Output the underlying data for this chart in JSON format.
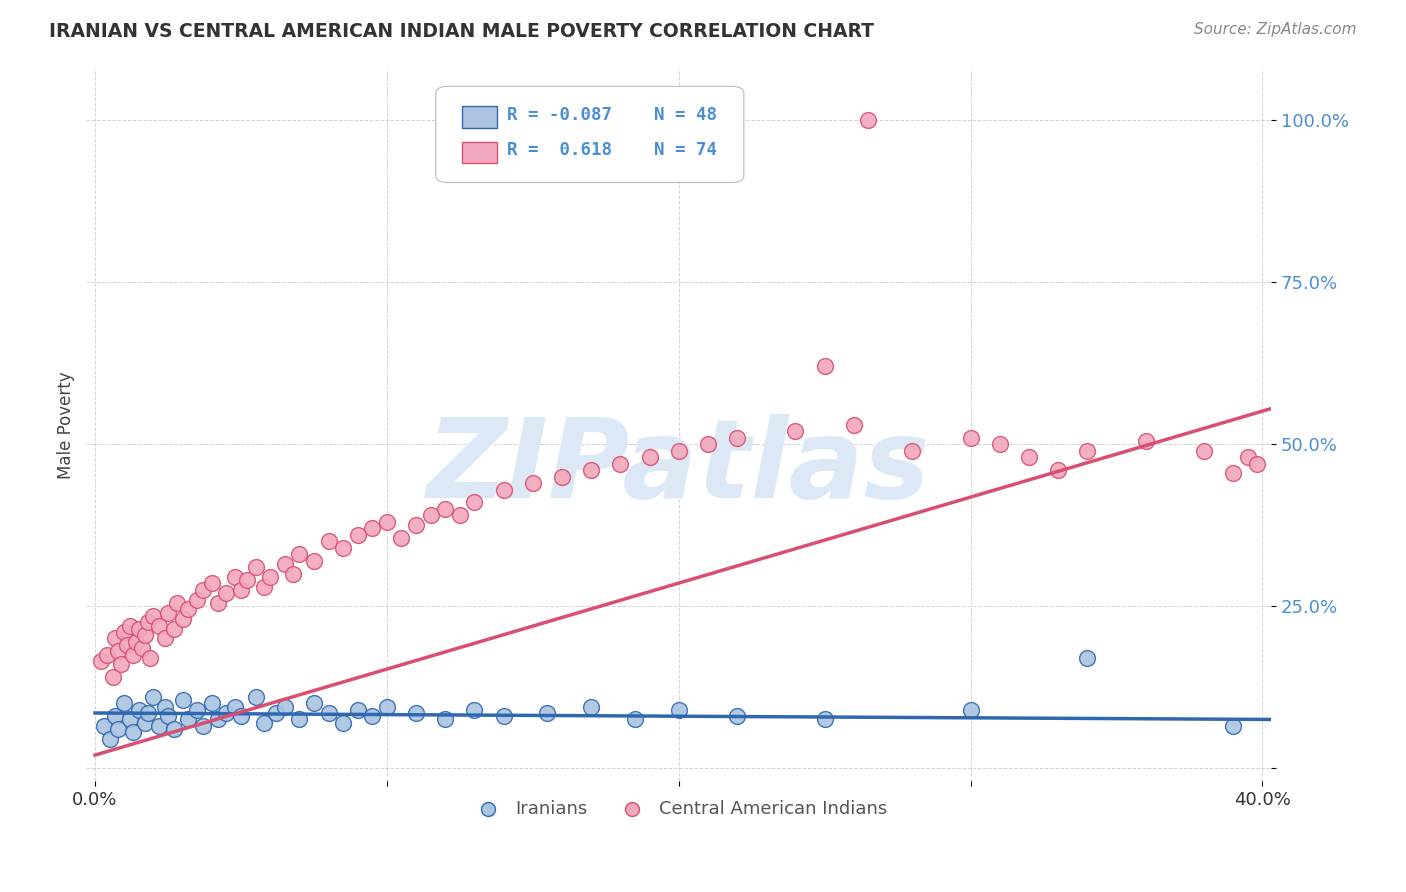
{
  "title": "IRANIAN VS CENTRAL AMERICAN INDIAN MALE POVERTY CORRELATION CHART",
  "source": "Source: ZipAtlas.com",
  "ylabel": "Male Poverty",
  "r_iranian": -0.087,
  "n_iranian": 48,
  "r_central": 0.618,
  "n_central": 74,
  "xlim": [
    -0.003,
    0.403
  ],
  "ylim": [
    -0.02,
    1.08
  ],
  "color_iranian": "#aac4e2",
  "color_central": "#f2a8bc",
  "line_color_iranian": "#3068b0",
  "line_color_central": "#d94f72",
  "background_color": "#ffffff",
  "watermark": "ZIPatlas",
  "watermark_color": "#dce8f5",
  "grid_color": "#c8c8c8",
  "title_color": "#333333",
  "source_color": "#888888",
  "yaxis_color": "#4a8fd4",
  "legend_text_color": "#4a8fd4",
  "bottom_legend_color": "#555555",
  "iran_trend_x0": 0.0,
  "iran_trend_x1": 0.403,
  "iran_trend_y0": 0.085,
  "iran_trend_y1": 0.075,
  "central_trend_x0": 0.0,
  "central_trend_x1": 0.403,
  "central_trend_y0": 0.02,
  "central_trend_y1": 0.555
}
